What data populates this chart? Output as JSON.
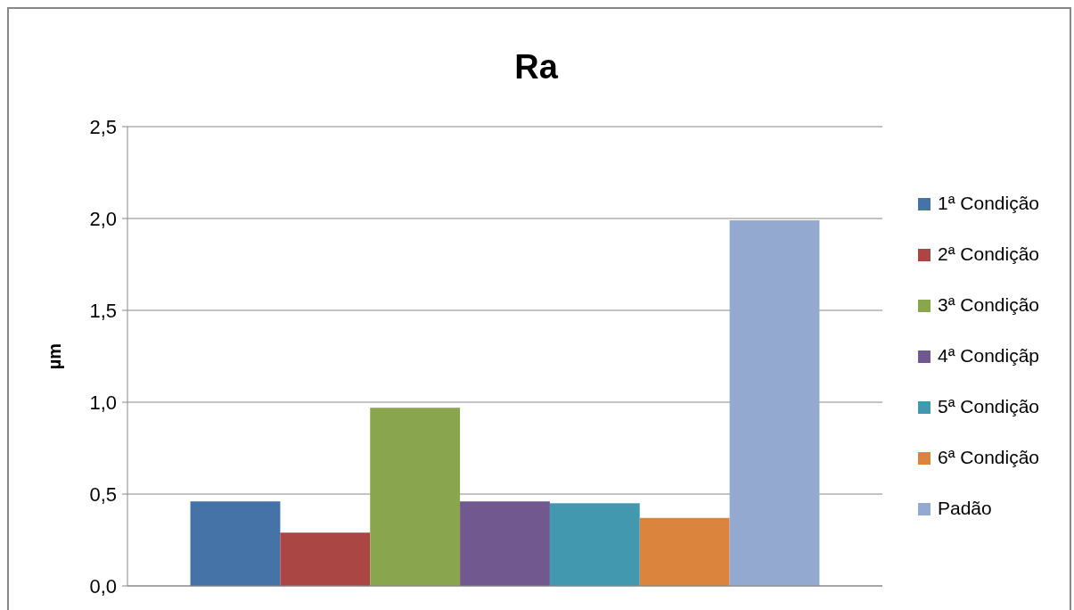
{
  "chart_data": {
    "type": "bar",
    "title": "Ra",
    "ylabel": "µm",
    "categories": [
      null
    ],
    "series": [
      {
        "name": "1ª Condição",
        "color": "#4572a7",
        "values": [
          0.46
        ]
      },
      {
        "name": "2ª Condição",
        "color": "#aa4643",
        "values": [
          0.29
        ]
      },
      {
        "name": "3ª Condição",
        "color": "#89a54e",
        "values": [
          0.97
        ]
      },
      {
        "name": "4ª Condiçãp",
        "color": "#71588f",
        "values": [
          0.46
        ]
      },
      {
        "name": "5ª Condição",
        "color": "#4198af",
        "values": [
          0.45
        ]
      },
      {
        "name": "6ª Condição",
        "color": "#db843d",
        "values": [
          0.37
        ]
      },
      {
        "name": "Padão",
        "color": "#93a9cf",
        "values": [
          1.99
        ]
      }
    ],
    "ylim": [
      0,
      2.5
    ],
    "yticks": [
      {
        "value": 0,
        "label": "0,0"
      },
      {
        "value": 0.5,
        "label": "0,5"
      },
      {
        "value": 1,
        "label": "1,0"
      },
      {
        "value": 1.5,
        "label": "1,5"
      },
      {
        "value": 2,
        "label": "2,0"
      },
      {
        "value": 2.5,
        "label": "2,5"
      }
    ],
    "grid": "y",
    "legend": "right"
  }
}
